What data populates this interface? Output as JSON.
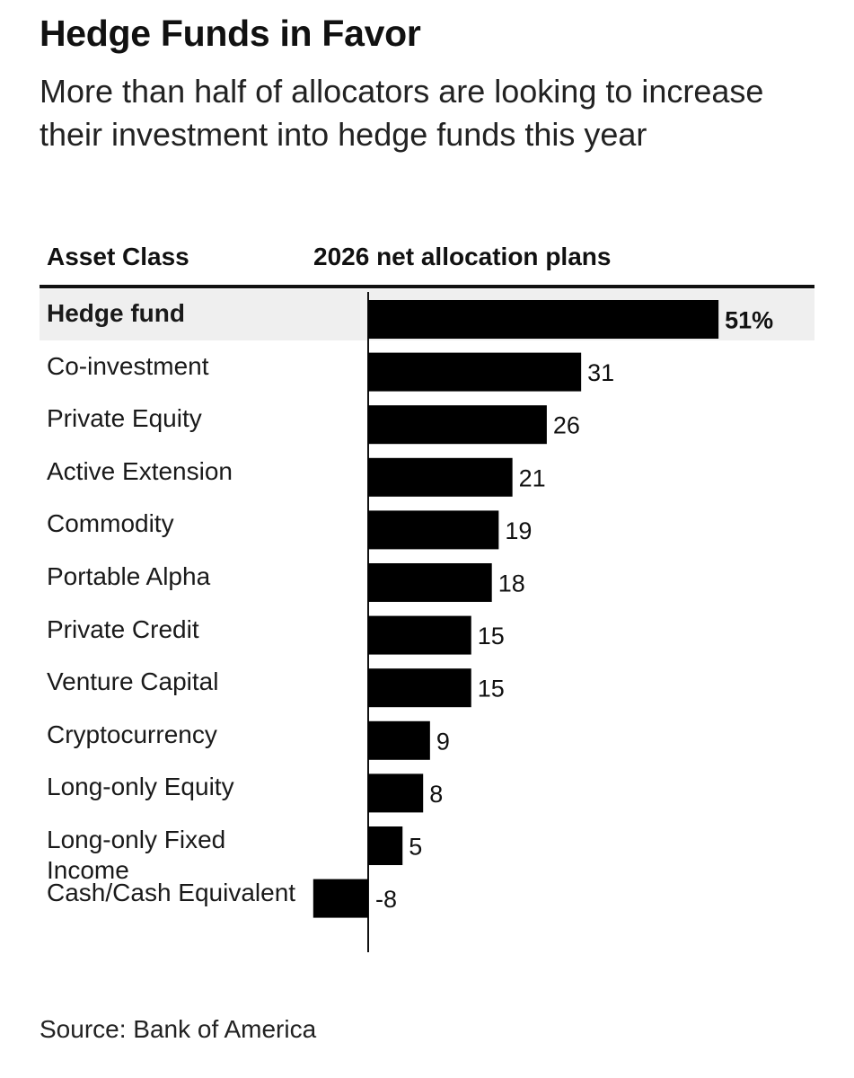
{
  "chart_data": {
    "type": "bar",
    "orientation": "horizontal",
    "title": "Hedge Funds in Favor",
    "subtitle": "More than half of allocators are looking to increase their investment into hedge funds this year",
    "column_headers": {
      "category": "Asset Class",
      "value": "2026 net allocation plans"
    },
    "categories": [
      "Hedge fund",
      "Co-investment",
      "Private Equity",
      "Active Extension",
      "Commodity",
      "Portable Alpha",
      "Private Credit",
      "Venture Capital",
      "Cryptocurrency",
      "Long-only Equity",
      "Long-only Fixed Income",
      "Cash/Cash Equivalent"
    ],
    "values": [
      51,
      31,
      26,
      21,
      19,
      18,
      15,
      15,
      9,
      8,
      5,
      -8
    ],
    "value_labels": [
      "51%",
      "31",
      "26",
      "21",
      "19",
      "18",
      "15",
      "15",
      "9",
      "8",
      "5",
      "-8"
    ],
    "highlighted_category": "Hedge fund",
    "unit": "%",
    "source": "Source: Bank of America",
    "colors": {
      "bar": "#000000",
      "highlight_band": "#efefef",
      "axis": "#111111"
    }
  }
}
